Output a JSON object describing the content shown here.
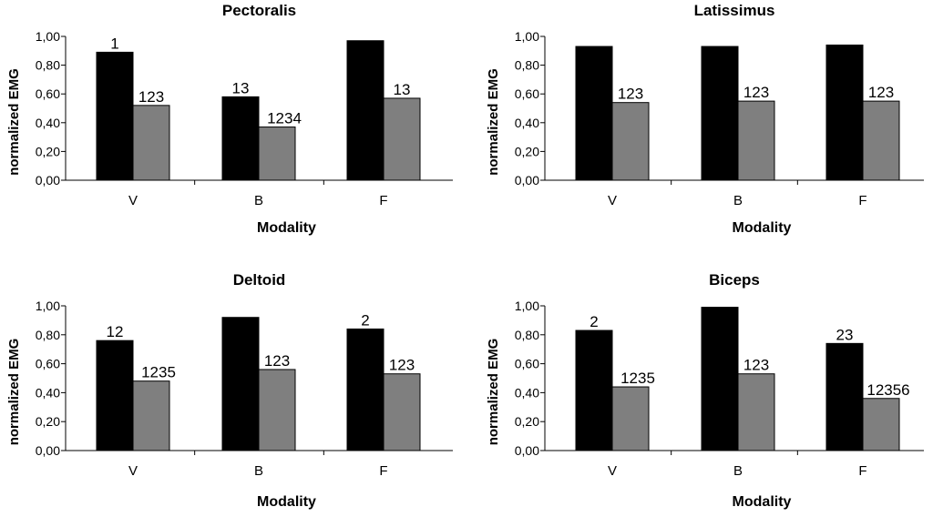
{
  "chart_data": [
    {
      "type": "bar",
      "title": "Pectoralis",
      "xlabel": "Modality",
      "ylabel": "normalized EMG",
      "categories": [
        "V",
        "B",
        "F"
      ],
      "ylim": [
        0,
        1
      ],
      "yticks": [
        "0,00",
        "0,20",
        "0,40",
        "0,60",
        "0,80",
        "1,00"
      ],
      "series": [
        {
          "values": [
            0.89,
            0.58,
            0.97
          ],
          "labels": [
            "1",
            "13",
            ""
          ],
          "color": "#000000"
        },
        {
          "values": [
            0.52,
            0.37,
            0.57
          ],
          "labels": [
            "123",
            "1234",
            "13"
          ],
          "color": "#7f7f7f"
        }
      ]
    },
    {
      "type": "bar",
      "title": "Latissimus",
      "xlabel": "Modality",
      "ylabel": "normalized EMG",
      "categories": [
        "V",
        "B",
        "F"
      ],
      "ylim": [
        0,
        1
      ],
      "yticks": [
        "0,00",
        "0,20",
        "0,40",
        "0,60",
        "0,80",
        "1,00"
      ],
      "series": [
        {
          "values": [
            0.93,
            0.93,
            0.94
          ],
          "labels": [
            "",
            "",
            ""
          ],
          "color": "#000000"
        },
        {
          "values": [
            0.54,
            0.55,
            0.55
          ],
          "labels": [
            "123",
            "123",
            "123"
          ],
          "color": "#7f7f7f"
        }
      ]
    },
    {
      "type": "bar",
      "title": "Deltoid",
      "xlabel": "Modality",
      "ylabel": "normalized EMG",
      "categories": [
        "V",
        "B",
        "F"
      ],
      "ylim": [
        0,
        1
      ],
      "yticks": [
        "0,00",
        "0,20",
        "0,40",
        "0,60",
        "0,80",
        "1,00"
      ],
      "series": [
        {
          "values": [
            0.76,
            0.92,
            0.84
          ],
          "labels": [
            "12",
            "",
            "2"
          ],
          "color": "#000000"
        },
        {
          "values": [
            0.48,
            0.56,
            0.53
          ],
          "labels": [
            "1235",
            "123",
            "123"
          ],
          "color": "#7f7f7f"
        }
      ]
    },
    {
      "type": "bar",
      "title": "Biceps",
      "xlabel": "Modality",
      "ylabel": "normalized EMG",
      "categories": [
        "V",
        "B",
        "F"
      ],
      "ylim": [
        0,
        1
      ],
      "yticks": [
        "0,00",
        "0,20",
        "0,40",
        "0,60",
        "0,80",
        "1,00"
      ],
      "series": [
        {
          "values": [
            0.83,
            0.99,
            0.74
          ],
          "labels": [
            "2",
            "",
            "23"
          ],
          "color": "#000000"
        },
        {
          "values": [
            0.44,
            0.53,
            0.36
          ],
          "labels": [
            "1235",
            "123",
            "12356"
          ],
          "color": "#7f7f7f"
        }
      ]
    }
  ]
}
